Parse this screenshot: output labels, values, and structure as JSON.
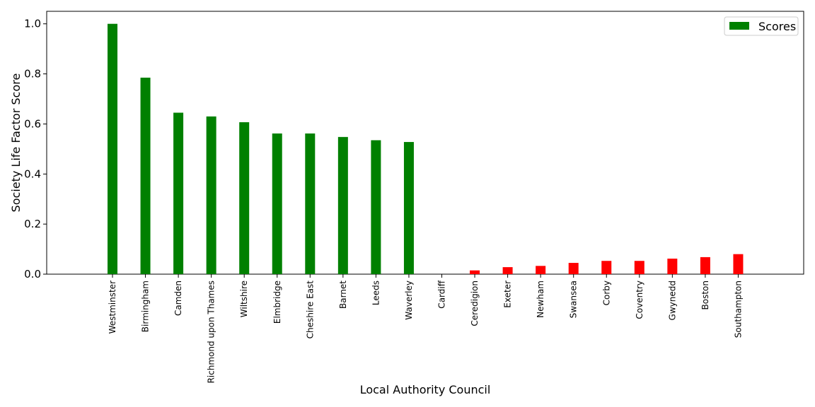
{
  "chart_data": {
    "type": "bar",
    "title": "",
    "xlabel": "Local Authority Council",
    "ylabel": "Society Life Factor Score",
    "ylim": [
      0,
      1.05
    ],
    "yticks": [
      "0.0",
      "0.2",
      "0.4",
      "0.6",
      "0.8",
      "1.0"
    ],
    "grid": false,
    "legend": {
      "placement": "top-right",
      "entries": [
        "Scores"
      ]
    },
    "colors": {
      "top": "#008000",
      "bottom": "#ff0000",
      "axis": "#000000"
    },
    "categories": [
      "Westminster",
      "Birmingham",
      "Camden",
      "Richmond upon Thames",
      "Wiltshire",
      "Elmbridge",
      "Cheshire East",
      "Barnet",
      "Leeds",
      "Waverley",
      "Cardiff",
      "Ceredigion",
      "Exeter",
      "Newham",
      "Swansea",
      "Corby",
      "Coventry",
      "Gwynedd",
      "Boston",
      "Southampton"
    ],
    "series": [
      {
        "name": "Scores",
        "values": [
          1.0,
          0.785,
          0.645,
          0.63,
          0.607,
          0.562,
          0.562,
          0.548,
          0.535,
          0.528,
          0.0,
          0.015,
          0.028,
          0.033,
          0.045,
          0.053,
          0.053,
          0.062,
          0.068,
          0.08
        ],
        "bar_colors": [
          "top",
          "top",
          "top",
          "top",
          "top",
          "top",
          "top",
          "top",
          "top",
          "top",
          "bottom",
          "bottom",
          "bottom",
          "bottom",
          "bottom",
          "bottom",
          "bottom",
          "bottom",
          "bottom",
          "bottom"
        ]
      }
    ]
  }
}
